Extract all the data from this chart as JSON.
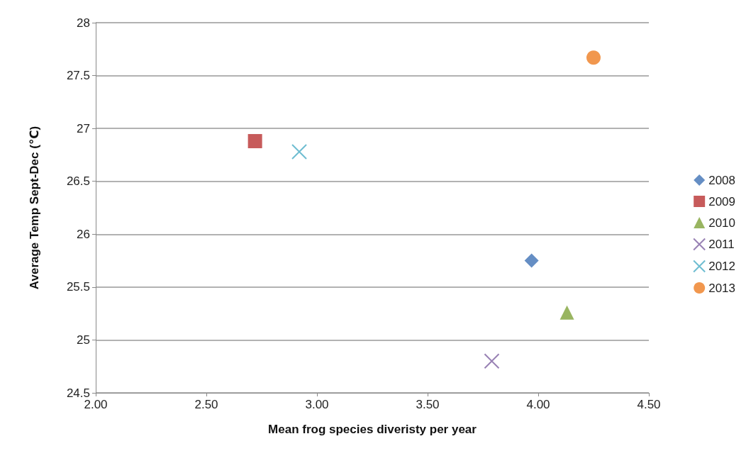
{
  "chart_data": {
    "type": "scatter",
    "xlabel": "Mean frog species diveristy per year",
    "ylabel": "Average Temp Sept-Dec (℃)",
    "xlim": [
      2,
      4.5
    ],
    "xticks": [
      {
        "value": 2,
        "label": "2.00"
      },
      {
        "value": 2.5,
        "label": "2.50"
      },
      {
        "value": 3,
        "label": "3.00"
      },
      {
        "value": 3.5,
        "label": "3.50"
      },
      {
        "value": 4,
        "label": "4.00"
      },
      {
        "value": 4.5,
        "label": "4.50"
      }
    ],
    "ylim": [
      24.5,
      28
    ],
    "yticks": [
      24.5,
      25,
      25.5,
      26,
      26.5,
      27,
      27.5,
      28
    ],
    "grid": "y",
    "legend": "right",
    "series": [
      {
        "name": "2008",
        "color": "#3f72b5",
        "marker": "diamond",
        "x": [
          3.97
        ],
        "values": [
          25.75
        ]
      },
      {
        "name": "2009",
        "color": "#b93232",
        "marker": "square",
        "x": [
          2.72
        ],
        "values": [
          26.88
        ]
      },
      {
        "name": "2010",
        "color": "#7fa23a",
        "marker": "triangle",
        "x": [
          4.13
        ],
        "values": [
          25.26
        ]
      },
      {
        "name": "2011",
        "color": "#7e62a1",
        "marker": "cross",
        "x": [
          3.79
        ],
        "values": [
          24.8
        ]
      },
      {
        "name": "2012",
        "color": "#4aacc6",
        "marker": "cross",
        "x": [
          2.92
        ],
        "values": [
          26.78
        ]
      },
      {
        "name": "2013",
        "color": "#ee7d22",
        "marker": "circle",
        "x": [
          4.25
        ],
        "values": [
          27.67
        ]
      }
    ]
  }
}
